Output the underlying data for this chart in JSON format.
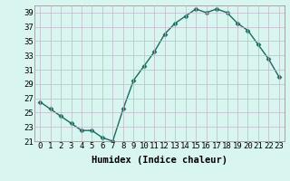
{
  "x": [
    0,
    1,
    2,
    3,
    4,
    5,
    6,
    7,
    8,
    9,
    10,
    11,
    12,
    13,
    14,
    15,
    16,
    17,
    18,
    19,
    20,
    21,
    22,
    23
  ],
  "y": [
    26.5,
    25.5,
    24.5,
    23.5,
    22.5,
    22.5,
    21.5,
    21.0,
    25.5,
    29.5,
    31.5,
    33.5,
    36.0,
    37.5,
    38.5,
    39.5,
    39.0,
    39.5,
    39.0,
    37.5,
    36.5,
    34.5,
    32.5,
    30.0
  ],
  "line_color": "#1a6b5e",
  "marker": "D",
  "marker_size": 2.5,
  "bg_color": "#d9f5f0",
  "grid_color": "#c0b8c8",
  "xlabel": "Humidex (Indice chaleur)",
  "ylim": [
    21,
    40
  ],
  "xlim": [
    -0.5,
    23.5
  ],
  "yticks": [
    21,
    23,
    25,
    27,
    29,
    31,
    33,
    35,
    37,
    39
  ],
  "xticks": [
    0,
    1,
    2,
    3,
    4,
    5,
    6,
    7,
    8,
    9,
    10,
    11,
    12,
    13,
    14,
    15,
    16,
    17,
    18,
    19,
    20,
    21,
    22,
    23
  ],
  "xlabel_fontsize": 7.5,
  "tick_fontsize": 6.5,
  "linewidth": 1.0
}
